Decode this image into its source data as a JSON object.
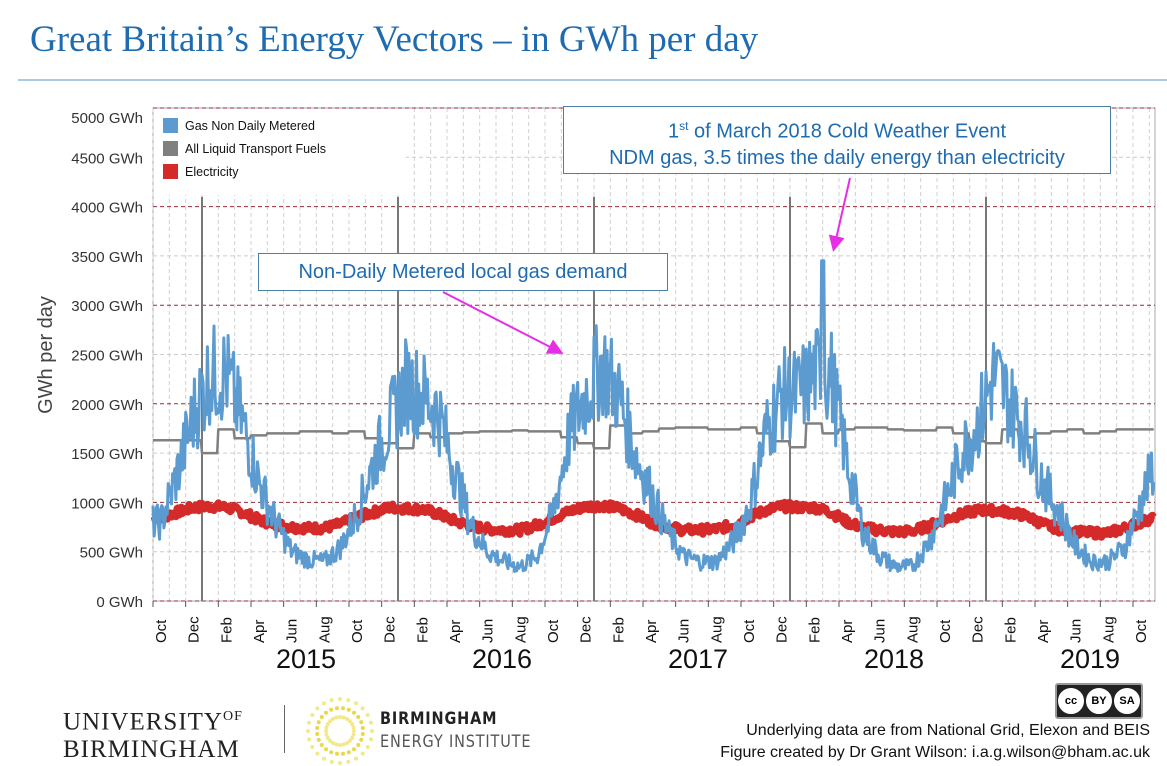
{
  "title": "Great Britain’s Energy Vectors – in GWh per day",
  "chart_data": {
    "type": "line",
    "ylabel": "GWh per day",
    "ylim": [
      0,
      5000
    ],
    "yticks": [
      "0 GWh",
      "500 GWh",
      "1000 GWh",
      "1500 GWh",
      "2000 GWh",
      "2500 GWh",
      "3000 GWh",
      "3500 GWh",
      "4000 GWh",
      "4500 GWh",
      "5000 GWh"
    ],
    "xrange": [
      "2014-10",
      "2019-11"
    ],
    "month_tick_labels": [
      "Oct",
      "Dec",
      "Feb",
      "Apr",
      "Jun",
      "Aug",
      "Oct",
      "Dec",
      "Feb",
      "Apr",
      "Jun",
      "Aug",
      "Oct",
      "Dec",
      "Feb",
      "Apr",
      "Jun",
      "Aug",
      "Oct",
      "Dec",
      "Feb",
      "Apr",
      "Jun",
      "Aug",
      "Oct",
      "Dec",
      "Feb",
      "Apr",
      "Jun",
      "Aug",
      "Oct"
    ],
    "year_labels": [
      "2015",
      "2016",
      "2017",
      "2018",
      "2019"
    ],
    "grid": true,
    "legend_position": "top-left",
    "x_months": "monthly from 2014-10 to 2019-11",
    "series": [
      {
        "name": "Gas Non Daily Metered",
        "color": "#5b9bd0",
        "values": [
          800,
          1300,
          1900,
          2300,
          2300,
          1800,
          1200,
          800,
          500,
          420,
          400,
          550,
          900,
          1400,
          1800,
          2200,
          2100,
          1900,
          1300,
          750,
          500,
          400,
          350,
          450,
          900,
          1700,
          2100,
          2400,
          2100,
          1500,
          1100,
          700,
          450,
          400,
          400,
          600,
          950,
          1700,
          2100,
          2100,
          2300,
          2300,
          1400,
          700,
          450,
          350,
          350,
          600,
          1000,
          1500,
          1800,
          2300,
          2000,
          1700,
          1200,
          900,
          550,
          400,
          400,
          550,
          1000,
          1500
        ]
      },
      {
        "name": "All Liquid Transport Fuels",
        "color": "#808080",
        "values": [
          1630,
          1630,
          1630,
          1500,
          1740,
          1650,
          1680,
          1700,
          1700,
          1720,
          1720,
          1700,
          1720,
          1650,
          1600,
          1550,
          1700,
          1660,
          1700,
          1710,
          1720,
          1720,
          1730,
          1720,
          1720,
          1660,
          1600,
          1550,
          1780,
          1700,
          1720,
          1750,
          1760,
          1760,
          1740,
          1740,
          1760,
          1700,
          1620,
          1560,
          1800,
          1700,
          1740,
          1760,
          1760,
          1740,
          1730,
          1730,
          1760,
          1700,
          1620,
          1600,
          1740,
          1660,
          1700,
          1720,
          1740,
          1700,
          1720,
          1740,
          1740,
          1740
        ]
      },
      {
        "name": "Electricity",
        "color": "#d42a2a",
        "values": [
          850,
          900,
          950,
          960,
          950,
          900,
          820,
          780,
          750,
          740,
          740,
          780,
          850,
          900,
          950,
          940,
          930,
          880,
          810,
          760,
          730,
          720,
          720,
          770,
          840,
          910,
          960,
          970,
          940,
          880,
          800,
          750,
          720,
          720,
          730,
          770,
          850,
          920,
          960,
          950,
          950,
          900,
          800,
          740,
          720,
          700,
          710,
          760,
          830,
          880,
          920,
          920,
          900,
          860,
          780,
          730,
          700,
          690,
          690,
          740,
          800,
          860
        ]
      }
    ],
    "annotations": [
      {
        "text": "Non-Daily Metered local gas demand"
      },
      {
        "text_sup": "st",
        "text_pre": "1",
        "text_line1": " of March 2018 Cold Weather Event",
        "text_line2": "NDM gas, 3.5 times the daily energy than electricity",
        "date": "2018-03-01",
        "value": 3450
      }
    ],
    "arrow_color": "#e62ee6"
  },
  "logos": {
    "uob_line1": "UNIVERSITY",
    "uob_of": "OF",
    "uob_line2": "BIRMINGHAM",
    "bei_line1": "BIRMINGHAM",
    "bei_line2": "ENERGY INSTITUTE"
  },
  "license": {
    "cc": "cc",
    "by": "BY",
    "sa": "SA"
  },
  "credits": {
    "line1": "Underlying data are from National Grid, Elexon and BEIS",
    "line2": "Figure created by Dr Grant Wilson: i.a.g.wilson@bham.ac.uk"
  }
}
